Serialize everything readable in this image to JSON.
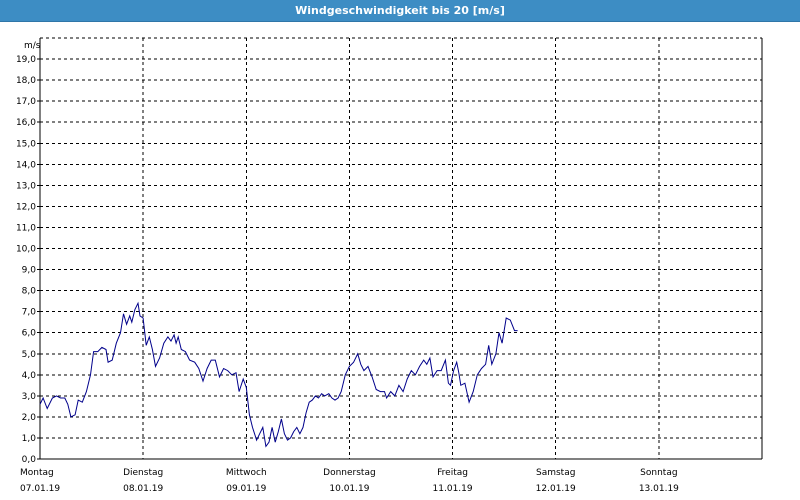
{
  "window": {
    "title": "Windgeschwindigkeit bis 20 [m/s]"
  },
  "chart_data": {
    "type": "line",
    "title": "Windgeschwindigkeit bis 20 [m/s]",
    "ylabel": "m/s",
    "ylim": [
      0,
      20
    ],
    "xlim": [
      0,
      7
    ],
    "grid": true,
    "line_color": "#00008b",
    "y_ticks": [
      "0,0",
      "1,0",
      "2,0",
      "3,0",
      "4,0",
      "5,0",
      "6,0",
      "7,0",
      "8,0",
      "9,0",
      "10,0",
      "11,0",
      "12,0",
      "13,0",
      "14,0",
      "15,0",
      "16,0",
      "17,0",
      "18,0",
      "19,0"
    ],
    "days": [
      {
        "name": "Montag",
        "date": "07.01.19"
      },
      {
        "name": "Dienstag",
        "date": "08.01.19"
      },
      {
        "name": "Mittwoch",
        "date": "09.01.19"
      },
      {
        "name": "Donnerstag",
        "date": "10.01.19"
      },
      {
        "name": "Freitag",
        "date": "11.01.19"
      },
      {
        "name": "Samstag",
        "date": "12.01.19"
      },
      {
        "name": "Sonntag",
        "date": "13.01.19"
      }
    ],
    "series": [
      {
        "points": [
          [
            0.0,
            2.6
          ],
          [
            0.03,
            2.9
          ],
          [
            0.07,
            2.4
          ],
          [
            0.12,
            2.9
          ],
          [
            0.16,
            3.0
          ],
          [
            0.2,
            2.9
          ],
          [
            0.24,
            2.9
          ],
          [
            0.27,
            2.6
          ],
          [
            0.3,
            2.0
          ],
          [
            0.34,
            2.1
          ],
          [
            0.37,
            2.8
          ],
          [
            0.41,
            2.7
          ],
          [
            0.45,
            3.2
          ],
          [
            0.49,
            4.0
          ],
          [
            0.52,
            5.1
          ],
          [
            0.56,
            5.1
          ],
          [
            0.6,
            5.3
          ],
          [
            0.64,
            5.2
          ],
          [
            0.66,
            4.6
          ],
          [
            0.7,
            4.7
          ],
          [
            0.74,
            5.5
          ],
          [
            0.78,
            6.0
          ],
          [
            0.81,
            6.9
          ],
          [
            0.84,
            6.4
          ],
          [
            0.87,
            6.8
          ],
          [
            0.89,
            6.5
          ],
          [
            0.92,
            7.1
          ],
          [
            0.95,
            7.4
          ],
          [
            0.97,
            6.8
          ],
          [
            1.0,
            6.7
          ],
          [
            1.03,
            5.4
          ],
          [
            1.06,
            5.8
          ],
          [
            1.09,
            5.2
          ],
          [
            1.12,
            4.4
          ],
          [
            1.16,
            4.8
          ],
          [
            1.2,
            5.5
          ],
          [
            1.24,
            5.8
          ],
          [
            1.27,
            5.6
          ],
          [
            1.3,
            5.9
          ],
          [
            1.32,
            5.5
          ],
          [
            1.34,
            5.8
          ],
          [
            1.37,
            5.2
          ],
          [
            1.41,
            5.1
          ],
          [
            1.45,
            4.7
          ],
          [
            1.5,
            4.6
          ],
          [
            1.54,
            4.3
          ],
          [
            1.58,
            3.7
          ],
          [
            1.62,
            4.3
          ],
          [
            1.66,
            4.7
          ],
          [
            1.7,
            4.7
          ],
          [
            1.74,
            3.9
          ],
          [
            1.78,
            4.3
          ],
          [
            1.82,
            4.2
          ],
          [
            1.86,
            4.0
          ],
          [
            1.9,
            4.1
          ],
          [
            1.93,
            3.2
          ],
          [
            1.97,
            3.8
          ],
          [
            2.0,
            3.4
          ],
          [
            2.03,
            2.1
          ],
          [
            2.06,
            1.5
          ],
          [
            2.1,
            0.9
          ],
          [
            2.13,
            1.2
          ],
          [
            2.16,
            1.5
          ],
          [
            2.19,
            0.6
          ],
          [
            2.22,
            0.8
          ],
          [
            2.25,
            1.5
          ],
          [
            2.28,
            0.8
          ],
          [
            2.31,
            1.3
          ],
          [
            2.34,
            1.9
          ],
          [
            2.37,
            1.2
          ],
          [
            2.4,
            0.9
          ],
          [
            2.43,
            1.0
          ],
          [
            2.46,
            1.3
          ],
          [
            2.49,
            1.5
          ],
          [
            2.52,
            1.2
          ],
          [
            2.55,
            1.5
          ],
          [
            2.58,
            2.2
          ],
          [
            2.61,
            2.7
          ],
          [
            2.64,
            2.8
          ],
          [
            2.67,
            3.0
          ],
          [
            2.7,
            2.9
          ],
          [
            2.73,
            3.1
          ],
          [
            2.76,
            3.0
          ],
          [
            2.8,
            3.1
          ],
          [
            2.83,
            2.9
          ],
          [
            2.86,
            2.8
          ],
          [
            2.89,
            2.9
          ],
          [
            2.92,
            3.2
          ],
          [
            2.96,
            4.0
          ],
          [
            3.0,
            4.4
          ],
          [
            3.04,
            4.6
          ],
          [
            3.08,
            5.0
          ],
          [
            3.11,
            4.5
          ],
          [
            3.14,
            4.2
          ],
          [
            3.18,
            4.4
          ],
          [
            3.22,
            3.9
          ],
          [
            3.26,
            3.3
          ],
          [
            3.3,
            3.2
          ],
          [
            3.34,
            3.2
          ],
          [
            3.36,
            2.9
          ],
          [
            3.4,
            3.2
          ],
          [
            3.44,
            3.0
          ],
          [
            3.48,
            3.5
          ],
          [
            3.52,
            3.2
          ],
          [
            3.56,
            3.8
          ],
          [
            3.6,
            4.2
          ],
          [
            3.64,
            4.0
          ],
          [
            3.68,
            4.4
          ],
          [
            3.72,
            4.7
          ],
          [
            3.75,
            4.5
          ],
          [
            3.78,
            4.8
          ],
          [
            3.81,
            3.9
          ],
          [
            3.85,
            4.2
          ],
          [
            3.89,
            4.2
          ],
          [
            3.93,
            4.7
          ],
          [
            3.96,
            3.6
          ],
          [
            3.98,
            3.5
          ],
          [
            4.01,
            4.2
          ],
          [
            4.04,
            4.6
          ],
          [
            4.06,
            4.1
          ],
          [
            4.08,
            3.5
          ],
          [
            4.12,
            3.6
          ],
          [
            4.16,
            2.7
          ],
          [
            4.2,
            3.2
          ],
          [
            4.24,
            4.0
          ],
          [
            4.28,
            4.3
          ],
          [
            4.32,
            4.5
          ],
          [
            4.35,
            5.4
          ],
          [
            4.38,
            4.5
          ],
          [
            4.42,
            5.0
          ],
          [
            4.45,
            6.0
          ],
          [
            4.48,
            5.5
          ],
          [
            4.52,
            6.7
          ],
          [
            4.56,
            6.6
          ],
          [
            4.6,
            6.1
          ],
          [
            4.63,
            6.1
          ]
        ]
      }
    ]
  }
}
